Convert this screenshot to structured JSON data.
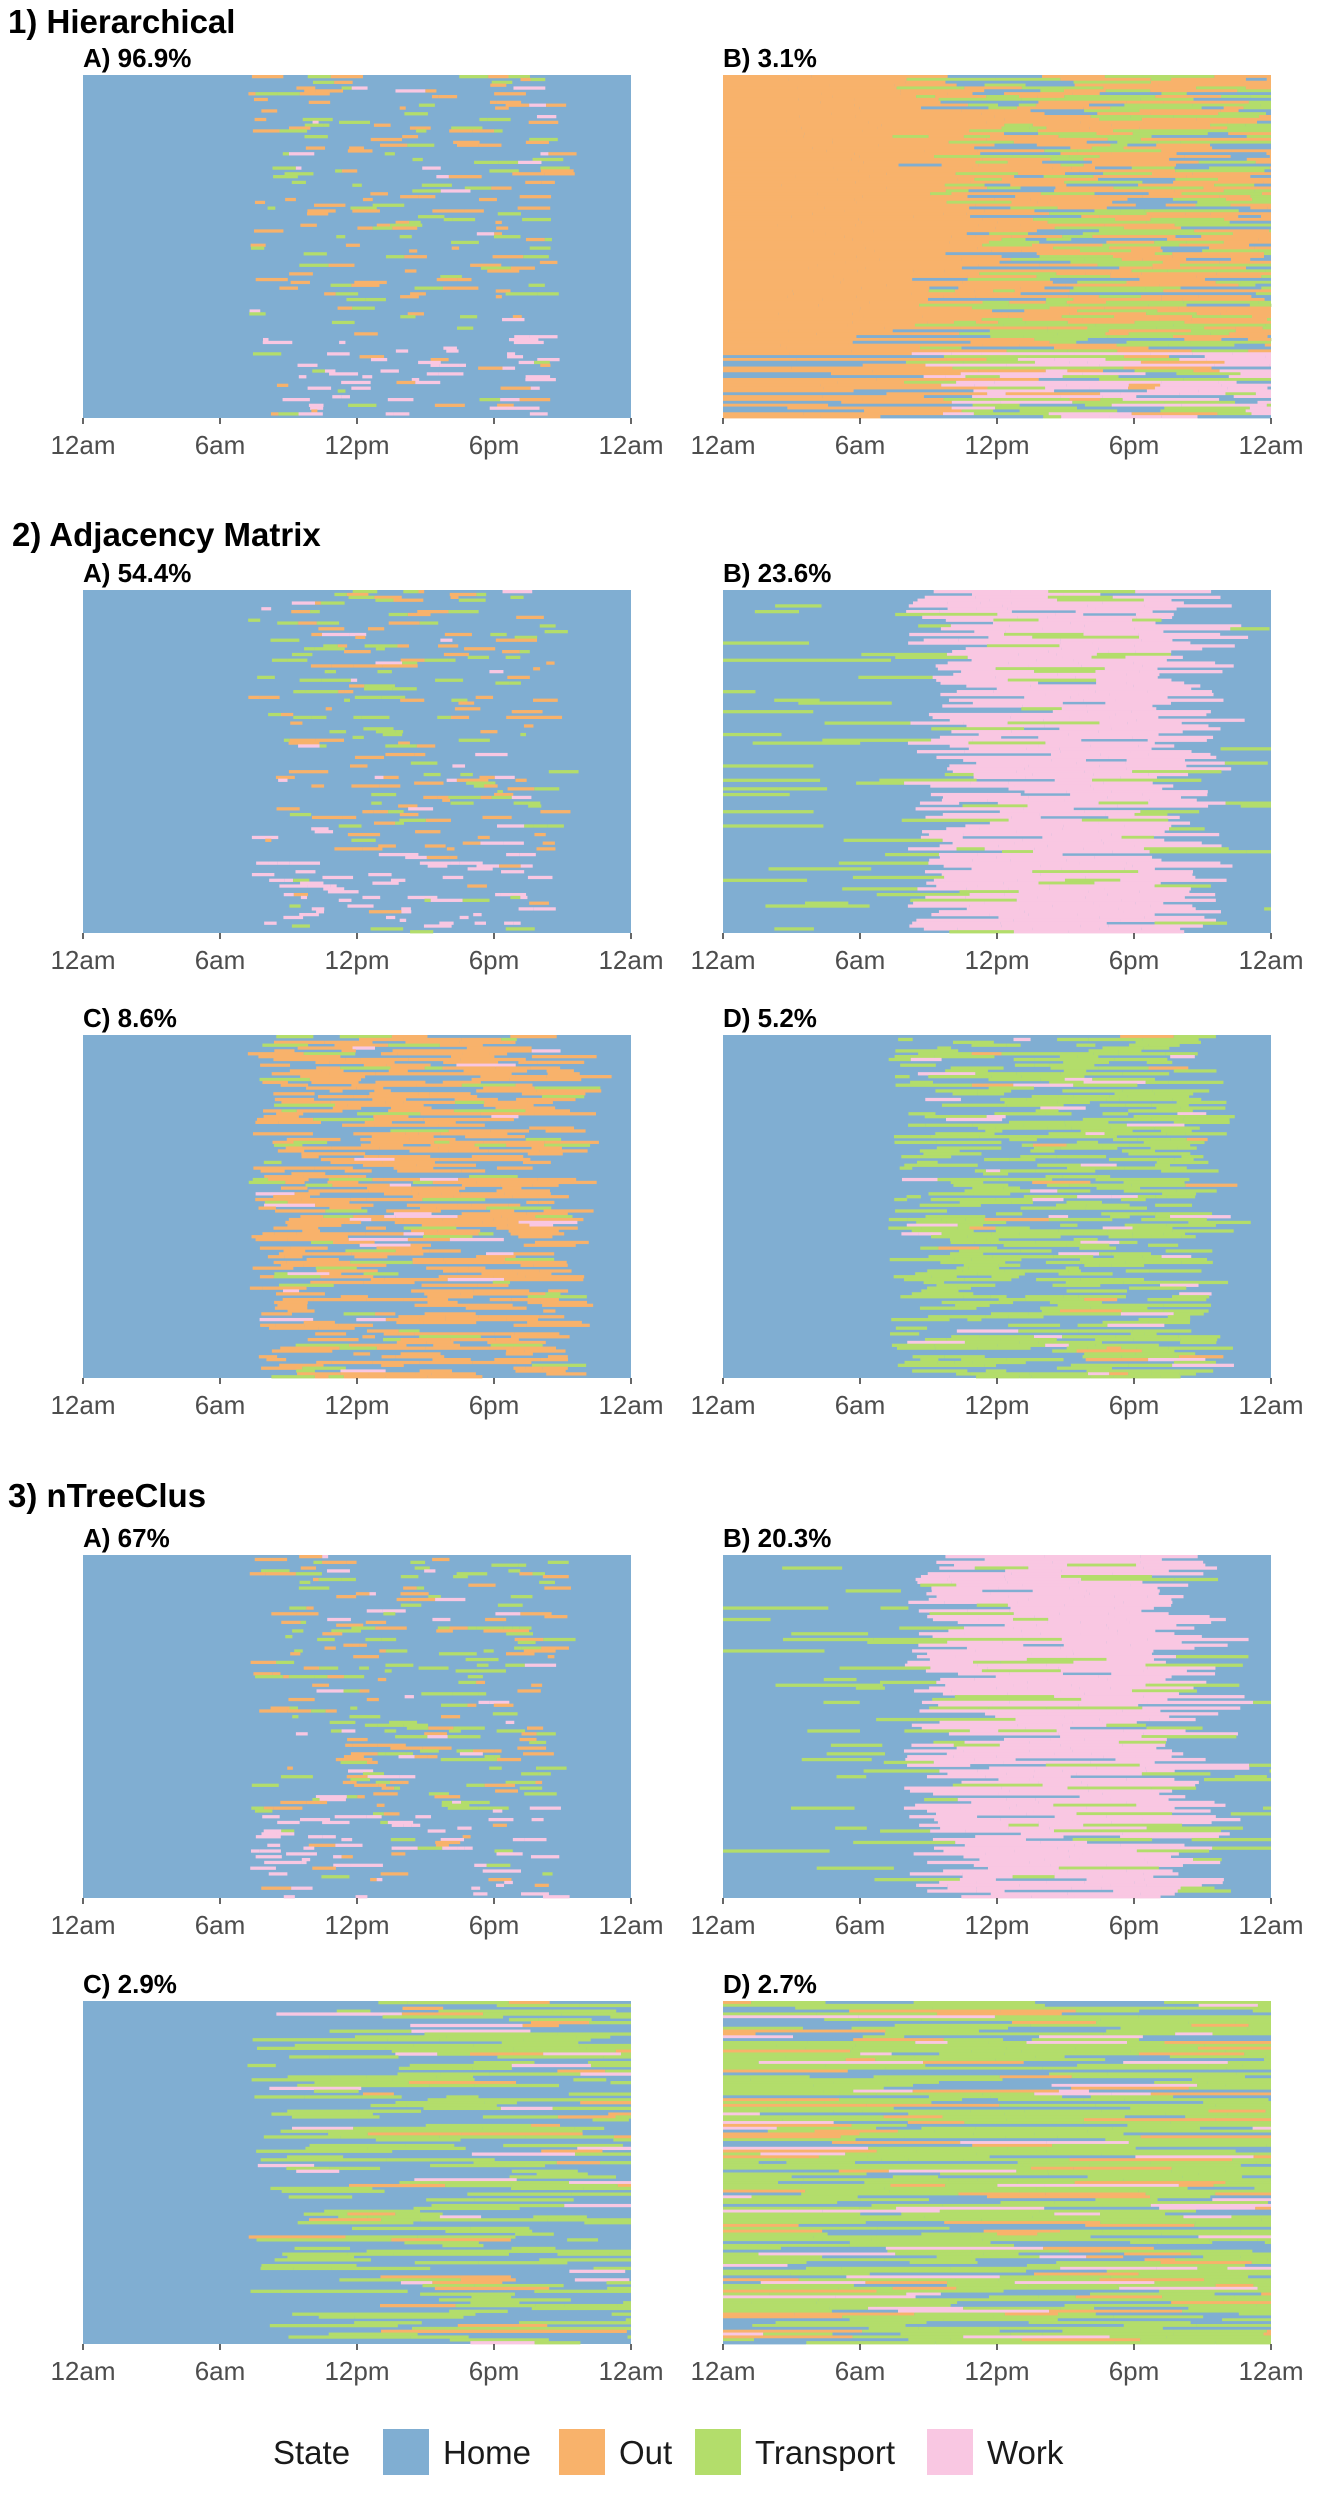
{
  "sections": [
    {
      "title": "1) Hierarchical"
    },
    {
      "title": "2) Adjacency Matrix"
    },
    {
      "title": "3) nTreeClus"
    }
  ],
  "legend": {
    "title": "State",
    "items": [
      {
        "label": "Home",
        "color": "#80aed2"
      },
      {
        "label": "Out",
        "color": "#f8b26b"
      },
      {
        "label": "Transport",
        "color": "#b3dd6b"
      },
      {
        "label": "Work",
        "color": "#f9c7e2"
      }
    ]
  },
  "chart_data": [
    {
      "type": "heatmap",
      "section": "1) Hierarchical",
      "panel": "A) 96.9%",
      "x_ticks": [
        "12am",
        "6am",
        "12pm",
        "6pm",
        "12am"
      ],
      "pattern": "mostly-home",
      "composition": {
        "Home": 0.78,
        "Out": 0.07,
        "Transport": 0.08,
        "Work": 0.07
      }
    },
    {
      "type": "heatmap",
      "section": "1) Hierarchical",
      "panel": "B) 3.1%",
      "x_ticks": [
        "12am",
        "6am",
        "12pm",
        "6pm",
        "12am"
      ],
      "pattern": "out-dominant",
      "composition": {
        "Home": 0.18,
        "Out": 0.55,
        "Transport": 0.17,
        "Work": 0.1
      }
    },
    {
      "type": "heatmap",
      "section": "2) Adjacency Matrix",
      "panel": "A) 54.4%",
      "x_ticks": [
        "12am",
        "6am",
        "12pm",
        "6pm",
        "12am"
      ],
      "pattern": "mostly-home",
      "composition": {
        "Home": 0.9,
        "Out": 0.04,
        "Transport": 0.05,
        "Work": 0.01
      }
    },
    {
      "type": "heatmap",
      "section": "2) Adjacency Matrix",
      "panel": "B) 23.6%",
      "x_ticks": [
        "12am",
        "6am",
        "12pm",
        "6pm",
        "12am"
      ],
      "pattern": "work-daytime",
      "composition": {
        "Home": 0.58,
        "Out": 0.02,
        "Transport": 0.05,
        "Work": 0.35
      }
    },
    {
      "type": "heatmap",
      "section": "2) Adjacency Matrix",
      "panel": "C) 8.6%",
      "x_ticks": [
        "12am",
        "6am",
        "12pm",
        "6pm",
        "12am"
      ],
      "pattern": "out-daytime",
      "composition": {
        "Home": 0.66,
        "Out": 0.26,
        "Transport": 0.06,
        "Work": 0.02
      }
    },
    {
      "type": "heatmap",
      "section": "2) Adjacency Matrix",
      "panel": "D) 5.2%",
      "x_ticks": [
        "12am",
        "6am",
        "12pm",
        "6pm",
        "12am"
      ],
      "pattern": "transport-daytime",
      "composition": {
        "Home": 0.55,
        "Out": 0.03,
        "Transport": 0.38,
        "Work": 0.04
      }
    },
    {
      "type": "heatmap",
      "section": "3) nTreeClus",
      "panel": "A) 67%",
      "x_ticks": [
        "12am",
        "6am",
        "12pm",
        "6pm",
        "12am"
      ],
      "pattern": "mostly-home",
      "composition": {
        "Home": 0.9,
        "Out": 0.05,
        "Transport": 0.04,
        "Work": 0.01
      }
    },
    {
      "type": "heatmap",
      "section": "3) nTreeClus",
      "panel": "B) 20.3%",
      "x_ticks": [
        "12am",
        "6am",
        "12pm",
        "6pm",
        "12am"
      ],
      "pattern": "work-daytime",
      "composition": {
        "Home": 0.56,
        "Out": 0.02,
        "Transport": 0.04,
        "Work": 0.38
      }
    },
    {
      "type": "heatmap",
      "section": "3) nTreeClus",
      "panel": "C) 2.9%",
      "x_ticks": [
        "12am",
        "6am",
        "12pm",
        "6pm",
        "12am"
      ],
      "pattern": "transport-blocks",
      "composition": {
        "Home": 0.6,
        "Out": 0.07,
        "Transport": 0.3,
        "Work": 0.03
      }
    },
    {
      "type": "heatmap",
      "section": "3) nTreeClus",
      "panel": "D) 2.7%",
      "x_ticks": [
        "12am",
        "6am",
        "12pm",
        "6pm",
        "12am"
      ],
      "pattern": "transport-dominant",
      "composition": {
        "Home": 0.22,
        "Out": 0.12,
        "Transport": 0.58,
        "Work": 0.08
      }
    }
  ]
}
